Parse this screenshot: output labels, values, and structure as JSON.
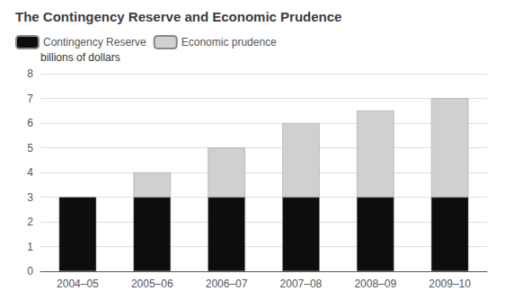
{
  "chart_data": {
    "type": "bar",
    "title": "The Contingency Reserve and Economic Prudence",
    "ylabel": "billions of dollars",
    "categories": [
      "2004–05",
      "2005–06",
      "2006–07",
      "2007–08",
      "2008–09",
      "2009–10"
    ],
    "series": [
      {
        "name": "Contingency Reserve",
        "color": "#0d0d0d",
        "values": [
          3,
          3,
          3,
          3,
          3,
          3
        ]
      },
      {
        "name": "Economic prudence",
        "color": "#d0d0d0",
        "values": [
          0,
          1,
          2,
          3,
          3.5,
          4
        ]
      }
    ],
    "stacked": true,
    "ylim": [
      0,
      8
    ],
    "yticks": [
      0,
      1,
      2,
      3,
      4,
      5,
      6,
      7,
      8
    ],
    "grid": true,
    "legend": "upper left"
  }
}
